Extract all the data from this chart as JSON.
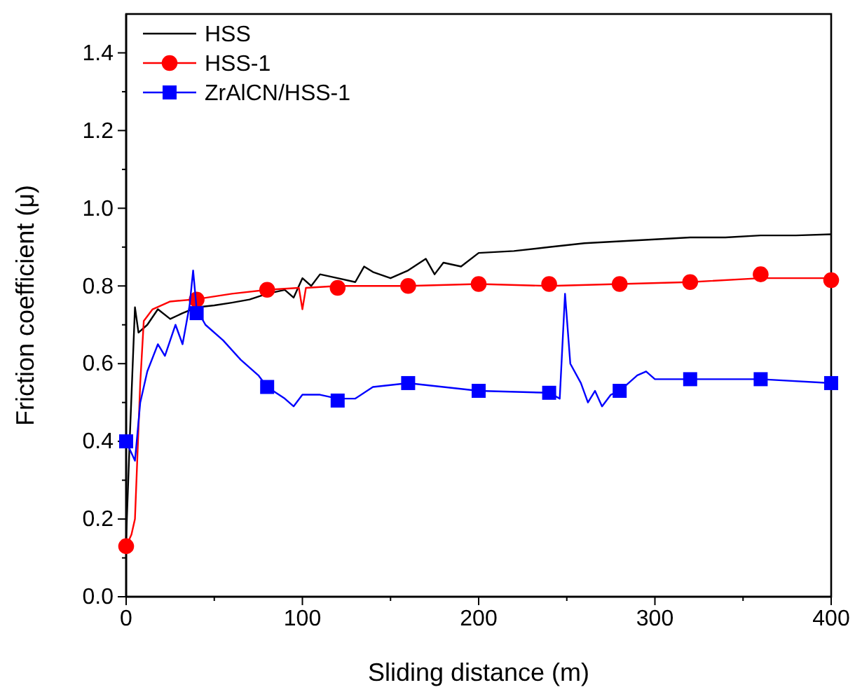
{
  "chart_data": {
    "type": "line",
    "xlabel": "Sliding distance (m)",
    "ylabel": "Friction coefficient (μ)",
    "xlim": [
      0,
      400
    ],
    "ylim": [
      0,
      1.5
    ],
    "xticks": [
      0,
      {
        "value": 50,
        "label": null
      },
      100,
      {
        "value": 150,
        "label": null
      },
      200,
      {
        "value": 250,
        "label": null
      },
      300,
      {
        "value": 350,
        "label": null
      },
      400
    ],
    "yticks": [
      {
        "value": 0,
        "label": "0.0"
      },
      {
        "value": 0.1,
        "label": null
      },
      0.2,
      {
        "value": 0.3,
        "label": null
      },
      0.4,
      {
        "value": 0.5,
        "label": null
      },
      0.6,
      {
        "value": 0.7,
        "label": null
      },
      0.8,
      {
        "value": 0.9,
        "label": null
      },
      {
        "value": 1.0,
        "label": "1.0"
      },
      {
        "value": 1.1,
        "label": null
      },
      1.2,
      {
        "value": 1.3,
        "label": null
      },
      1.4
    ],
    "legend": "top left",
    "grid": false,
    "line_style": "solid",
    "series": [
      {
        "name": "HSS",
        "color": "#000000",
        "x": [
          0,
          2,
          5,
          7,
          12,
          18,
          25,
          32,
          40,
          50,
          60,
          70,
          80,
          90,
          95,
          100,
          105,
          110,
          120,
          130,
          135,
          140,
          150,
          160,
          170,
          175,
          180,
          190,
          200,
          220,
          240,
          260,
          280,
          300,
          320,
          340,
          360,
          380,
          400
        ],
        "values": [
          0.15,
          0.4,
          0.745,
          0.68,
          0.7,
          0.74,
          0.715,
          0.73,
          0.745,
          0.75,
          0.757,
          0.765,
          0.78,
          0.79,
          0.77,
          0.82,
          0.8,
          0.83,
          0.82,
          0.81,
          0.85,
          0.836,
          0.82,
          0.84,
          0.87,
          0.83,
          0.86,
          0.85,
          0.885,
          0.89,
          0.9,
          0.91,
          0.915,
          0.92,
          0.925,
          0.925,
          0.93,
          0.93,
          0.933
        ]
      },
      {
        "name": "HSS-1",
        "color": "#ff0000",
        "x": [
          0,
          3,
          5,
          8,
          10,
          15,
          25,
          40,
          60,
          80,
          98,
          100,
          102,
          120,
          160,
          200,
          240,
          280,
          320,
          360,
          400
        ],
        "values": [
          0.13,
          0.16,
          0.2,
          0.55,
          0.71,
          0.74,
          0.76,
          0.766,
          0.78,
          0.79,
          0.795,
          0.74,
          0.795,
          0.8,
          0.8,
          0.805,
          0.8,
          0.805,
          0.81,
          0.82,
          0.82
        ]
      },
      {
        "type": "scatter",
        "color": "#ff0000",
        "marker": "circle",
        "x": [
          0,
          40,
          80,
          120,
          160,
          200,
          240,
          280,
          320,
          360,
          400
        ],
        "values": [
          0.13,
          0.765,
          0.79,
          0.795,
          0.8,
          0.805,
          0.805,
          0.805,
          0.81,
          0.83,
          0.815
        ]
      },
      {
        "name": "ZrAlCN/HSS-1",
        "color": "#0000ff",
        "x": [
          0,
          2,
          5,
          8,
          12,
          18,
          22,
          28,
          32,
          36,
          38,
          40,
          45,
          55,
          65,
          75,
          80,
          90,
          95,
          100,
          110,
          120,
          130,
          140,
          160,
          180,
          200,
          240,
          246,
          249,
          252,
          258,
          262,
          266,
          270,
          275,
          280,
          290,
          295,
          300,
          320,
          360,
          400
        ],
        "values": [
          0.4,
          0.38,
          0.35,
          0.5,
          0.58,
          0.65,
          0.62,
          0.7,
          0.65,
          0.75,
          0.84,
          0.74,
          0.7,
          0.66,
          0.61,
          0.57,
          0.54,
          0.51,
          0.49,
          0.52,
          0.52,
          0.51,
          0.51,
          0.54,
          0.55,
          0.54,
          0.53,
          0.525,
          0.51,
          0.78,
          0.6,
          0.55,
          0.5,
          0.53,
          0.49,
          0.52,
          0.53,
          0.57,
          0.58,
          0.56,
          0.56,
          0.56,
          0.55
        ]
      },
      {
        "type": "scatter",
        "color": "#0000ff",
        "marker": "square",
        "x": [
          0,
          40,
          80,
          120,
          160,
          200,
          240,
          280,
          320,
          360,
          400
        ],
        "values": [
          0.4,
          0.73,
          0.54,
          0.505,
          0.55,
          0.53,
          0.525,
          0.53,
          0.56,
          0.56,
          0.55
        ]
      }
    ]
  }
}
